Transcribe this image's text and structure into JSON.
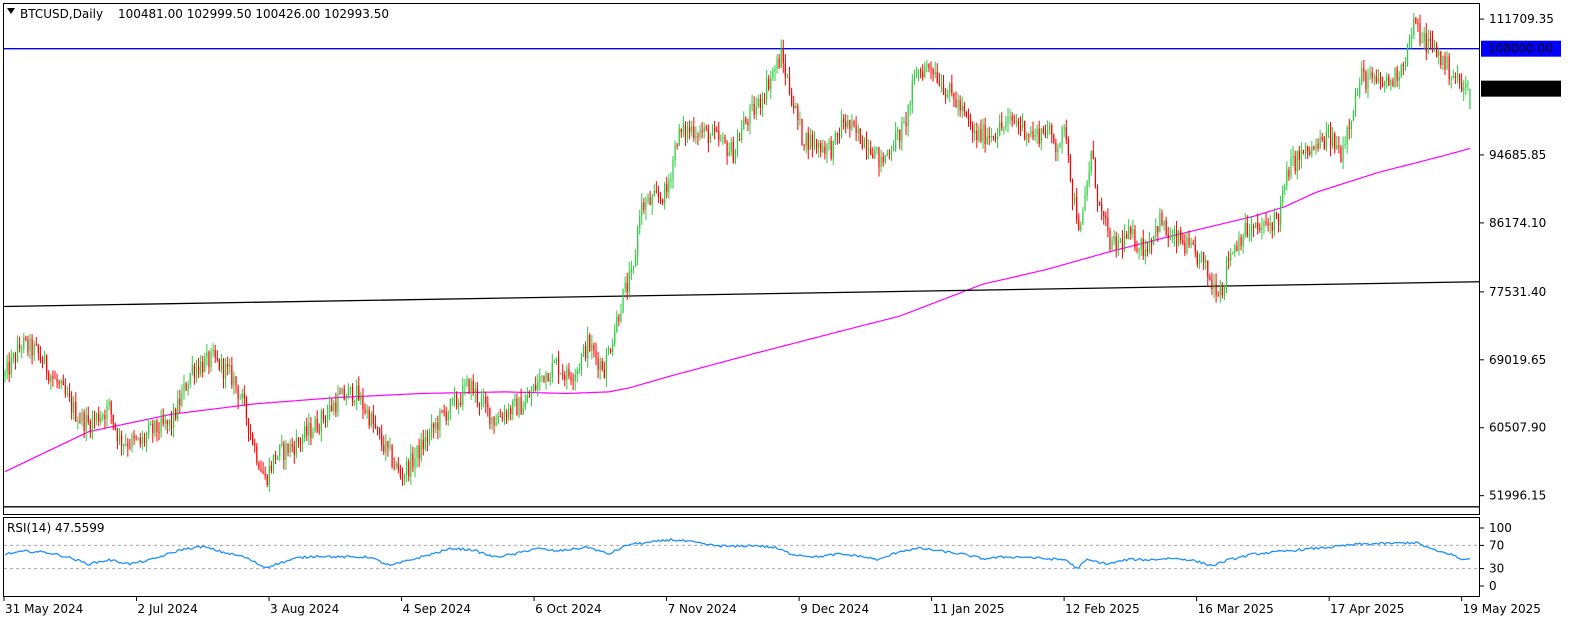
{
  "header": {
    "symbol_timeframe": "BTCUSD,Daily",
    "ohlc": "100481.00 102999.50 100426.00 102993.50"
  },
  "rsi": {
    "label": "RSI(14) 47.5599",
    "levels": [
      70,
      30
    ],
    "scale_labels": [
      "100",
      "70",
      "30",
      "0"
    ],
    "color": "#1e90ff"
  },
  "colors": {
    "bull": "#2ecc40",
    "bear": "#ff0000",
    "ma": "#ff00ff",
    "resistance": "#0000ff",
    "trendline": "#000000",
    "last_price_bg": "#000000",
    "level_bg": "#0000ff"
  },
  "chart_data": {
    "type": "candlestick",
    "title": "BTCUSD,Daily",
    "y_ticks": [
      "111709.35",
      "94685.85",
      "86174.10",
      "77531.40",
      "69019.65",
      "60507.90",
      "51996.15"
    ],
    "x_ticks": [
      "31 May 2024",
      "2 Jul 2024",
      "3 Aug 2024",
      "4 Sep 2024",
      "6 Oct 2024",
      "7 Nov 2024",
      "9 Dec 2024",
      "11 Jan 2025",
      "12 Feb 2025",
      "16 Mar 2025",
      "17 Apr 2025",
      "19 May 2025"
    ],
    "ylim": [
      49700,
      113600
    ],
    "price_labels": {
      "level": "108000.00",
      "last": "102993.50"
    },
    "horizontal_levels": [
      108000,
      50600
    ],
    "trendline": {
      "start": 75700,
      "end": 78800
    },
    "close_path": [
      [
        0,
        67000
      ],
      [
        8,
        71000
      ],
      [
        15,
        70000
      ],
      [
        25,
        66000
      ],
      [
        35,
        62000
      ],
      [
        40,
        61000
      ],
      [
        50,
        63000
      ],
      [
        55,
        59000
      ],
      [
        65,
        58500
      ],
      [
        70,
        60000
      ],
      [
        80,
        61000
      ],
      [
        90,
        68000
      ],
      [
        100,
        69000
      ],
      [
        105,
        68000
      ],
      [
        110,
        66500
      ],
      [
        115,
        63000
      ],
      [
        120,
        58000
      ],
      [
        125,
        54000
      ],
      [
        130,
        57000
      ],
      [
        140,
        58500
      ],
      [
        150,
        61000
      ],
      [
        160,
        64000
      ],
      [
        168,
        65000
      ],
      [
        175,
        62000
      ],
      [
        180,
        59000
      ],
      [
        185,
        57000
      ],
      [
        190,
        54500
      ],
      [
        195,
        56000
      ],
      [
        200,
        58000
      ],
      [
        210,
        62000
      ],
      [
        218,
        64000
      ],
      [
        223,
        66000
      ],
      [
        228,
        64000
      ],
      [
        235,
        61500
      ],
      [
        240,
        62500
      ],
      [
        250,
        63500
      ],
      [
        258,
        67000
      ],
      [
        265,
        68500
      ],
      [
        270,
        67000
      ],
      [
        275,
        68000
      ],
      [
        280,
        71000
      ],
      [
        285,
        69000
      ],
      [
        288,
        68000
      ],
      [
        292,
        72000
      ],
      [
        297,
        77000
      ],
      [
        302,
        80000
      ],
      [
        305,
        88000
      ],
      [
        312,
        89000
      ],
      [
        318,
        90000
      ],
      [
        323,
        97000
      ],
      [
        330,
        98000
      ],
      [
        340,
        97000
      ],
      [
        350,
        95000
      ],
      [
        355,
        98500
      ],
      [
        362,
        101000
      ],
      [
        367,
        104000
      ],
      [
        373,
        107000
      ],
      [
        377,
        103000
      ],
      [
        383,
        97000
      ],
      [
        390,
        96000
      ],
      [
        398,
        95500
      ],
      [
        403,
        99000
      ],
      [
        408,
        97500
      ],
      [
        416,
        96000
      ],
      [
        421,
        93500
      ],
      [
        426,
        96000
      ],
      [
        432,
        98000
      ],
      [
        438,
        105000
      ],
      [
        445,
        106000
      ],
      [
        452,
        103000
      ],
      [
        458,
        101000
      ],
      [
        466,
        97000
      ],
      [
        475,
        97500
      ],
      [
        485,
        99000
      ],
      [
        495,
        97000
      ],
      [
        500,
        98000
      ],
      [
        505,
        96000
      ],
      [
        510,
        97500
      ],
      [
        513,
        90000
      ],
      [
        517,
        85000
      ],
      [
        522,
        95000
      ],
      [
        526,
        88000
      ],
      [
        532,
        83000
      ],
      [
        540,
        84500
      ],
      [
        548,
        83000
      ],
      [
        555,
        86500
      ],
      [
        560,
        84000
      ],
      [
        565,
        84000
      ],
      [
        570,
        82500
      ],
      [
        575,
        81500
      ],
      [
        580,
        78500
      ],
      [
        585,
        78000
      ],
      [
        588,
        82000
      ],
      [
        595,
        85000
      ],
      [
        605,
        85500
      ],
      [
        612,
        87000
      ],
      [
        617,
        93000
      ],
      [
        622,
        94500
      ],
      [
        630,
        95500
      ],
      [
        636,
        97000
      ],
      [
        642,
        95000
      ],
      [
        647,
        100000
      ],
      [
        652,
        104500
      ],
      [
        660,
        103500
      ],
      [
        667,
        104000
      ],
      [
        673,
        107000
      ],
      [
        677,
        111000
      ],
      [
        682,
        109000
      ],
      [
        687,
        108000
      ],
      [
        692,
        106000
      ],
      [
        697,
        104500
      ],
      [
        700,
        103000
      ],
      [
        704,
        102993
      ]
    ],
    "ma_path": [
      [
        0,
        55000
      ],
      [
        40,
        60000
      ],
      [
        80,
        62200
      ],
      [
        120,
        63500
      ],
      [
        160,
        64300
      ],
      [
        200,
        64800
      ],
      [
        240,
        65000
      ],
      [
        270,
        64800
      ],
      [
        290,
        65000
      ],
      [
        300,
        65500
      ],
      [
        320,
        67000
      ],
      [
        360,
        69800
      ],
      [
        400,
        72500
      ],
      [
        430,
        74500
      ],
      [
        450,
        76500
      ],
      [
        470,
        78500
      ],
      [
        500,
        80300
      ],
      [
        530,
        82500
      ],
      [
        560,
        84500
      ],
      [
        600,
        87000
      ],
      [
        615,
        88200
      ],
      [
        630,
        90000
      ],
      [
        660,
        92500
      ],
      [
        690,
        94500
      ],
      [
        704,
        95500
      ]
    ],
    "rsi_path": [
      [
        0,
        55
      ],
      [
        10,
        60
      ],
      [
        20,
        58
      ],
      [
        30,
        50
      ],
      [
        40,
        38
      ],
      [
        50,
        45
      ],
      [
        60,
        38
      ],
      [
        70,
        45
      ],
      [
        85,
        63
      ],
      [
        95,
        68
      ],
      [
        105,
        58
      ],
      [
        115,
        50
      ],
      [
        125,
        32
      ],
      [
        140,
        48
      ],
      [
        150,
        52
      ],
      [
        160,
        50
      ],
      [
        175,
        50
      ],
      [
        185,
        35
      ],
      [
        195,
        45
      ],
      [
        205,
        55
      ],
      [
        215,
        65
      ],
      [
        225,
        62
      ],
      [
        235,
        50
      ],
      [
        245,
        55
      ],
      [
        255,
        65
      ],
      [
        265,
        60
      ],
      [
        280,
        67
      ],
      [
        290,
        55
      ],
      [
        300,
        72
      ],
      [
        310,
        75
      ],
      [
        320,
        80
      ],
      [
        330,
        76
      ],
      [
        340,
        70
      ],
      [
        350,
        68
      ],
      [
        360,
        70
      ],
      [
        370,
        66
      ],
      [
        378,
        55
      ],
      [
        390,
        50
      ],
      [
        400,
        55
      ],
      [
        410,
        52
      ],
      [
        420,
        45
      ],
      [
        430,
        60
      ],
      [
        440,
        65
      ],
      [
        450,
        60
      ],
      [
        460,
        55
      ],
      [
        470,
        47
      ],
      [
        480,
        50
      ],
      [
        490,
        50
      ],
      [
        500,
        47
      ],
      [
        510,
        45
      ],
      [
        515,
        30
      ],
      [
        520,
        45
      ],
      [
        530,
        38
      ],
      [
        540,
        46
      ],
      [
        550,
        45
      ],
      [
        560,
        48
      ],
      [
        570,
        45
      ],
      [
        580,
        35
      ],
      [
        588,
        45
      ],
      [
        600,
        55
      ],
      [
        615,
        60
      ],
      [
        630,
        65
      ],
      [
        640,
        68
      ],
      [
        650,
        72
      ],
      [
        660,
        73
      ],
      [
        670,
        74
      ],
      [
        678,
        75
      ],
      [
        688,
        60
      ],
      [
        695,
        55
      ],
      [
        700,
        45
      ],
      [
        704,
        47.56
      ]
    ]
  }
}
